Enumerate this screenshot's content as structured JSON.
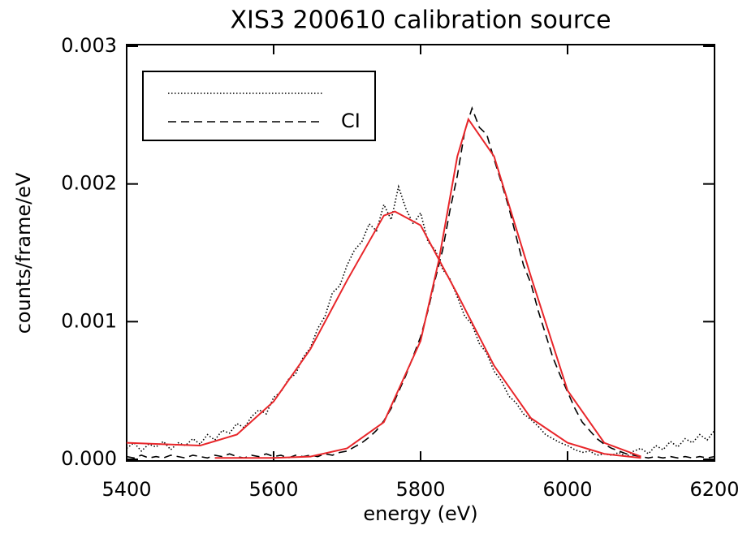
{
  "chart_data": {
    "type": "line",
    "title": "XIS3 200610 calibration source",
    "xlabel": "energy (eV)",
    "ylabel": "counts/frame/eV",
    "xlim": [
      5400,
      6200
    ],
    "ylim": [
      0,
      0.003
    ],
    "xticks": [
      5400,
      5600,
      5800,
      6000,
      6200
    ],
    "yticks": [
      {
        "value": 0,
        "label": "0.000"
      },
      {
        "value": 0.001,
        "label": "0.001"
      },
      {
        "value": 0.002,
        "label": "0.002"
      },
      {
        "value": 0.003,
        "label": "0.003"
      }
    ],
    "series": [
      {
        "color": "#000000",
        "dash": "dotted",
        "legend": true,
        "x": [
          5400,
          5410,
          5420,
          5430,
          5440,
          5450,
          5460,
          5470,
          5480,
          5490,
          5500,
          5510,
          5520,
          5530,
          5540,
          5550,
          5560,
          5570,
          5580,
          5590,
          5600,
          5610,
          5620,
          5630,
          5640,
          5650,
          5660,
          5670,
          5680,
          5690,
          5700,
          5710,
          5720,
          5730,
          5740,
          5750,
          5760,
          5770,
          5780,
          5790,
          5800,
          5810,
          5820,
          5830,
          5840,
          5850,
          5860,
          5870,
          5880,
          5890,
          5900,
          5910,
          5920,
          5930,
          5940,
          5950,
          5960,
          5970,
          5980,
          5990,
          6000,
          6010,
          6020,
          6030,
          6040,
          6050,
          6060,
          6070,
          6080,
          6090,
          6100,
          6110,
          6120,
          6130,
          6140,
          6150,
          6160,
          6170,
          6180,
          6190,
          6200
        ],
        "values": [
          8e-05,
          0.00012,
          6e-05,
          0.00011,
          9e-05,
          0.00013,
          7e-05,
          0.00012,
          0.0001,
          0.00015,
          0.00011,
          0.00018,
          0.00014,
          0.00021,
          0.00019,
          0.00026,
          0.00023,
          0.00031,
          0.00036,
          0.00033,
          0.00045,
          0.00049,
          0.00058,
          0.00062,
          0.00074,
          0.00081,
          0.00095,
          0.00104,
          0.00121,
          0.00126,
          0.00141,
          0.00152,
          0.00158,
          0.00171,
          0.00166,
          0.00185,
          0.00174,
          0.00198,
          0.00182,
          0.00171,
          0.00179,
          0.00158,
          0.00152,
          0.00138,
          0.00131,
          0.00118,
          0.00104,
          0.00098,
          0.00084,
          0.00077,
          0.00064,
          0.00057,
          0.00046,
          0.00041,
          0.00033,
          0.00029,
          0.00024,
          0.00018,
          0.00015,
          0.00012,
          0.0001,
          7e-05,
          5e-05,
          6e-05,
          3e-05,
          4e-05,
          3e-05,
          5e-05,
          2e-05,
          6e-05,
          8e-05,
          4e-05,
          0.0001,
          7e-05,
          0.00013,
          9e-05,
          0.00015,
          0.00012,
          0.00018,
          0.00014,
          0.00021
        ]
      },
      {
        "name": "CI",
        "color": "#000000",
        "dash": "dashed",
        "legend": true,
        "x": [
          5400,
          5410,
          5420,
          5430,
          5440,
          5450,
          5460,
          5470,
          5480,
          5490,
          5500,
          5510,
          5520,
          5530,
          5540,
          5550,
          5560,
          5570,
          5580,
          5590,
          5600,
          5610,
          5620,
          5630,
          5640,
          5650,
          5660,
          5670,
          5680,
          5690,
          5700,
          5710,
          5720,
          5730,
          5740,
          5750,
          5760,
          5770,
          5780,
          5790,
          5800,
          5810,
          5820,
          5830,
          5840,
          5850,
          5860,
          5870,
          5880,
          5890,
          5900,
          5910,
          5920,
          5930,
          5940,
          5950,
          5960,
          5970,
          5980,
          5990,
          6000,
          6010,
          6020,
          6030,
          6040,
          6050,
          6060,
          6070,
          6080,
          6090,
          6100,
          6110,
          6120,
          6130,
          6140,
          6150,
          6160,
          6170,
          6180,
          6190,
          6200
        ],
        "values": [
          2e-05,
          1e-05,
          3e-05,
          1e-05,
          2e-05,
          1e-05,
          3e-05,
          2e-05,
          1e-05,
          3e-05,
          2e-05,
          1e-05,
          3e-05,
          2e-05,
          4e-05,
          2e-05,
          1e-05,
          3e-05,
          2e-05,
          4e-05,
          2e-05,
          3e-05,
          1e-05,
          3e-05,
          2e-05,
          3e-05,
          2e-05,
          4e-05,
          3e-05,
          5e-05,
          6e-05,
          9e-05,
          0.00012,
          0.00016,
          0.00021,
          0.00028,
          0.00037,
          0.00049,
          0.00061,
          0.00075,
          0.00089,
          0.00108,
          0.00131,
          0.00152,
          0.00181,
          0.00206,
          0.00238,
          0.00255,
          0.00241,
          0.00236,
          0.00218,
          0.00201,
          0.00183,
          0.00162,
          0.00141,
          0.00128,
          0.00108,
          0.00091,
          0.00074,
          0.00061,
          0.00049,
          0.00037,
          0.00027,
          0.00021,
          0.00015,
          0.00011,
          8e-05,
          6e-05,
          4e-05,
          3e-05,
          2e-05,
          1e-05,
          2e-05,
          1e-05,
          2e-05,
          1e-05,
          2e-05,
          1e-05,
          2e-05,
          1e-05,
          2e-05
        ]
      },
      {
        "color": "#e8262a",
        "dash": "solid",
        "legend": false,
        "x": [
          5400,
          5450,
          5500,
          5550,
          5600,
          5650,
          5700,
          5750,
          5765,
          5800,
          5850,
          5900,
          5950,
          6000,
          6050,
          6100
        ],
        "values": [
          0.00012,
          0.00011,
          0.0001,
          0.00018,
          0.00042,
          0.0008,
          0.0013,
          0.00177,
          0.0018,
          0.0017,
          0.0012,
          0.00068,
          0.0003,
          0.00012,
          4e-05,
          1e-05
        ]
      },
      {
        "color": "#e8262a",
        "dash": "solid",
        "legend": false,
        "x": [
          5520,
          5600,
          5650,
          5700,
          5750,
          5800,
          5825,
          5850,
          5865,
          5900,
          5950,
          6000,
          6050,
          6100
        ],
        "values": [
          1e-05,
          1e-05,
          2e-05,
          8e-05,
          0.00027,
          0.00086,
          0.00145,
          0.0022,
          0.00247,
          0.0022,
          0.00133,
          0.0005,
          0.00012,
          2e-05
        ]
      }
    ]
  }
}
